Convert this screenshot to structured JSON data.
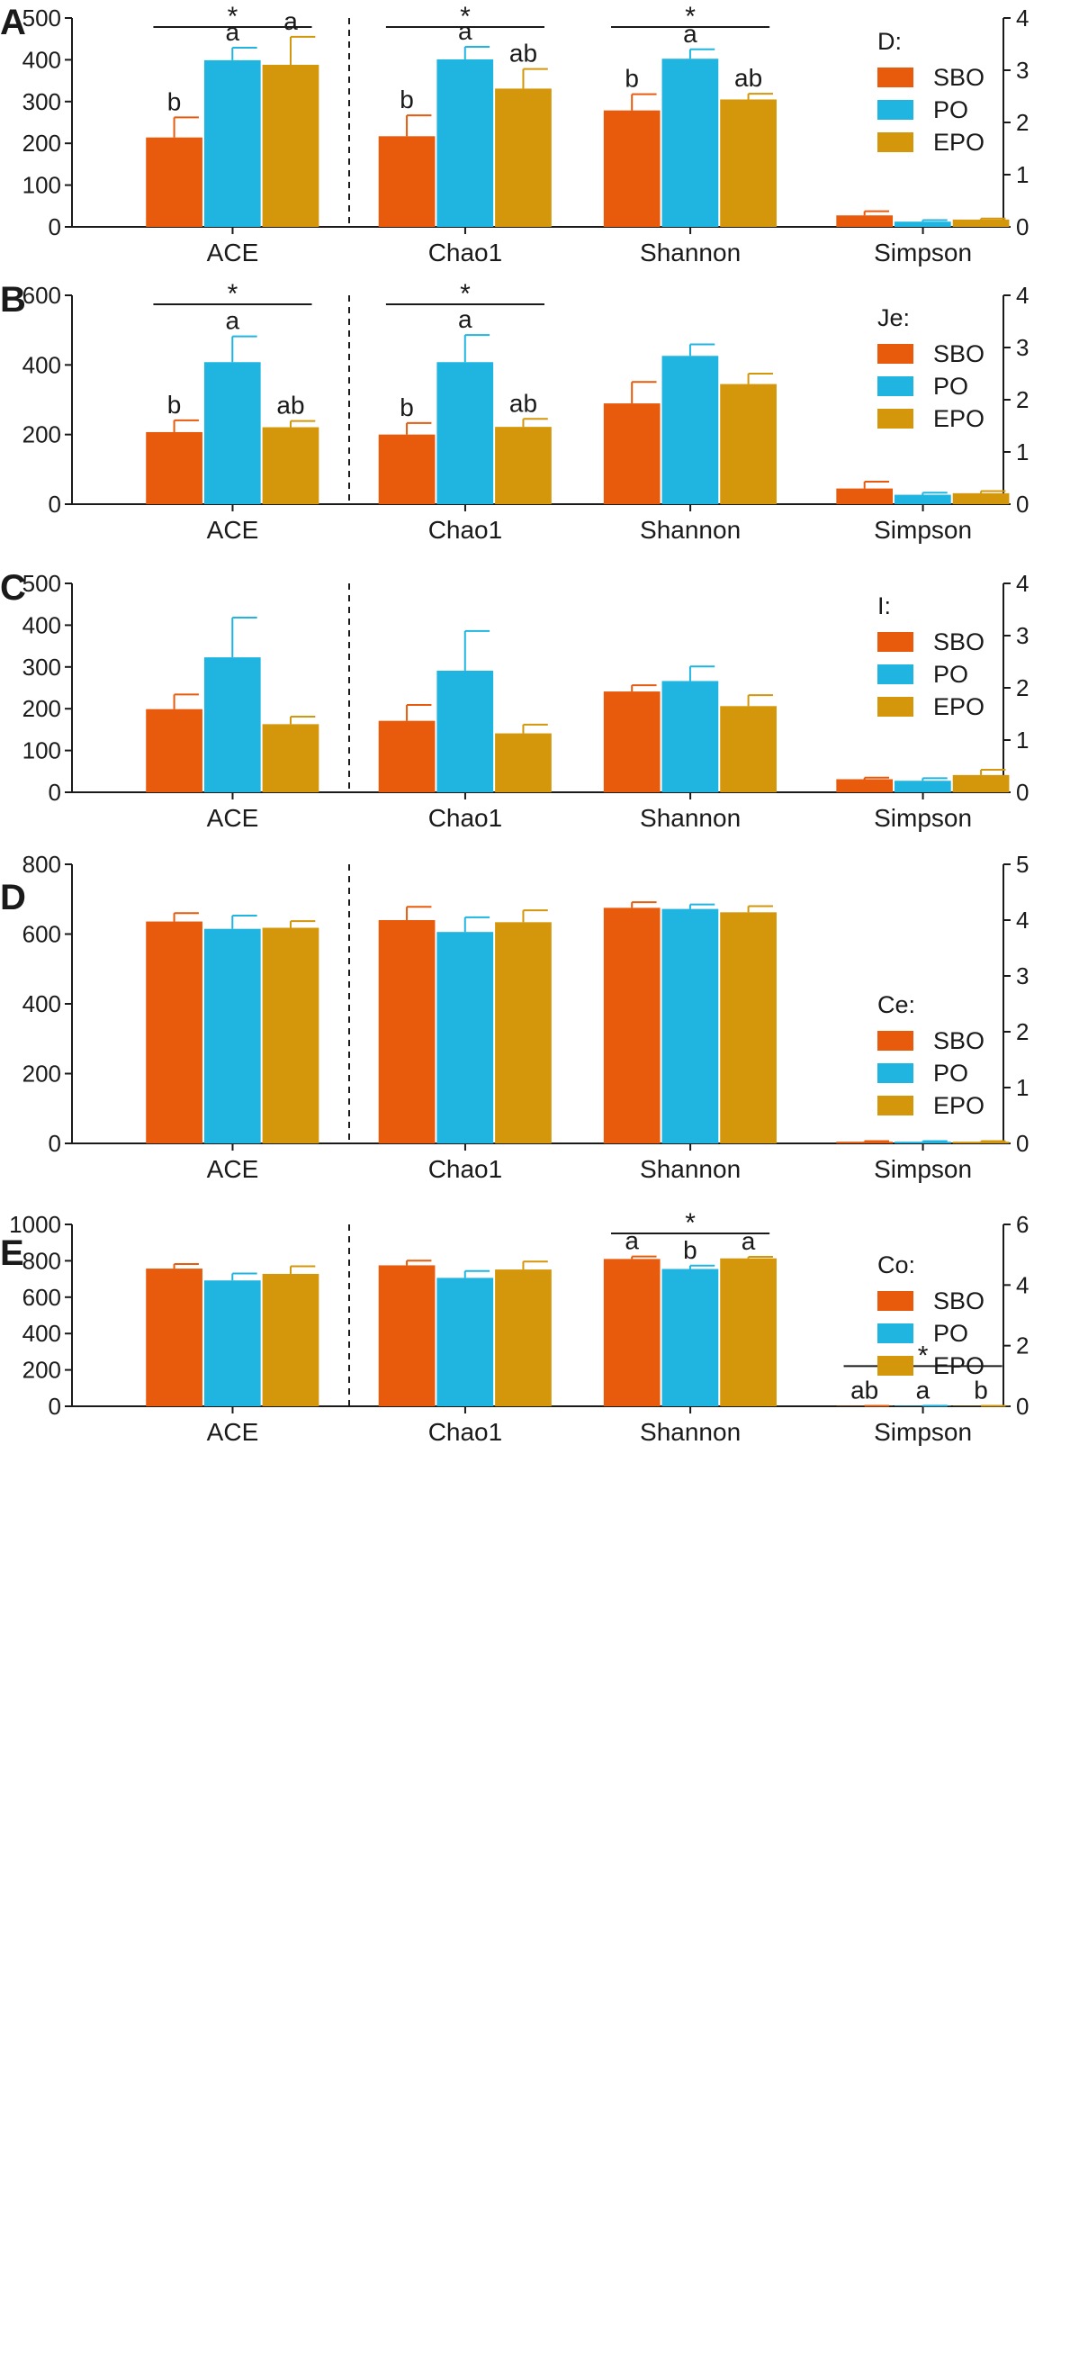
{
  "colors": {
    "SBO": "#E85A0C",
    "PO": "#1FB5E0",
    "EPO": "#D4960A",
    "axis": "#1a1a1a"
  },
  "chart_data": [
    {
      "type": "bar",
      "panel": "A",
      "legend_title": "D:",
      "categories": [
        "ACE",
        "Chao1",
        "Shannon",
        "Simpson"
      ],
      "left_axis": {
        "ylim": [
          0,
          500
        ],
        "ticks": [
          0,
          100,
          200,
          300,
          400,
          500
        ],
        "applies_to": [
          "ACE",
          "Chao1"
        ]
      },
      "right_axis": {
        "ylim": [
          0,
          4
        ],
        "ticks": [
          0,
          1,
          2,
          3,
          4
        ],
        "applies_to": [
          "Shannon",
          "Simpson"
        ]
      },
      "series": [
        {
          "name": "SBO",
          "values": [
            214,
            217,
            2.23,
            0.22
          ],
          "errors": [
            48,
            50,
            0.31,
            0.08
          ]
        },
        {
          "name": "PO",
          "values": [
            399,
            401,
            3.22,
            0.1
          ],
          "errors": [
            30,
            30,
            0.18,
            0.03
          ]
        },
        {
          "name": "EPO",
          "values": [
            388,
            331,
            2.44,
            0.14
          ],
          "errors": [
            67,
            47,
            0.11,
            0.02
          ]
        }
      ],
      "letters": [
        [
          "b",
          "a",
          "a"
        ],
        [
          "b",
          "a",
          "ab"
        ],
        [
          "b",
          "a",
          "ab"
        ],
        [
          "",
          "",
          ""
        ]
      ],
      "significance": [
        {
          "category": "ACE",
          "label": "*"
        },
        {
          "category": "Chao1",
          "label": "*"
        },
        {
          "category": "Shannon",
          "label": "*"
        }
      ]
    },
    {
      "type": "bar",
      "panel": "B",
      "legend_title": "Je:",
      "categories": [
        "ACE",
        "Chao1",
        "Shannon",
        "Simpson"
      ],
      "left_axis": {
        "ylim": [
          0,
          600
        ],
        "ticks": [
          0,
          200,
          400,
          600
        ],
        "applies_to": [
          "ACE",
          "Chao1"
        ]
      },
      "right_axis": {
        "ylim": [
          0,
          4
        ],
        "ticks": [
          0,
          1,
          2,
          3,
          4
        ],
        "applies_to": [
          "Shannon",
          "Simpson"
        ]
      },
      "series": [
        {
          "name": "SBO",
          "values": [
            207,
            200,
            1.93,
            0.3
          ],
          "errors": [
            34,
            33,
            0.41,
            0.13
          ]
        },
        {
          "name": "PO",
          "values": [
            408,
            408,
            2.84,
            0.18
          ],
          "errors": [
            74,
            78,
            0.22,
            0.04
          ]
        },
        {
          "name": "EPO",
          "values": [
            221,
            222,
            2.3,
            0.21
          ],
          "errors": [
            18,
            23,
            0.2,
            0.04
          ]
        }
      ],
      "letters": [
        [
          "b",
          "a",
          "ab"
        ],
        [
          "b",
          "a",
          "ab"
        ],
        [
          "",
          "",
          ""
        ],
        [
          "",
          "",
          ""
        ]
      ],
      "significance": [
        {
          "category": "ACE",
          "label": "*"
        },
        {
          "category": "Chao1",
          "label": "*"
        }
      ]
    },
    {
      "type": "bar",
      "panel": "C",
      "legend_title": "I:",
      "categories": [
        "ACE",
        "Chao1",
        "Shannon",
        "Simpson"
      ],
      "left_axis": {
        "ylim": [
          0,
          500
        ],
        "ticks": [
          0,
          100,
          200,
          300,
          400,
          500
        ],
        "applies_to": [
          "ACE",
          "Chao1"
        ]
      },
      "right_axis": {
        "ylim": [
          0,
          4
        ],
        "ticks": [
          0,
          1,
          2,
          3,
          4
        ],
        "applies_to": [
          "Shannon",
          "Simpson"
        ]
      },
      "series": [
        {
          "name": "SBO",
          "values": [
            199,
            171,
            1.93,
            0.25
          ],
          "errors": [
            35,
            38,
            0.12,
            0.03
          ]
        },
        {
          "name": "PO",
          "values": [
            323,
            291,
            2.13,
            0.22
          ],
          "errors": [
            95,
            95,
            0.28,
            0.05
          ]
        },
        {
          "name": "EPO",
          "values": [
            163,
            141,
            1.65,
            0.33
          ],
          "errors": [
            18,
            21,
            0.21,
            0.1
          ]
        }
      ],
      "letters": [
        [
          "",
          "",
          ""
        ],
        [
          "",
          "",
          ""
        ],
        [
          "",
          "",
          ""
        ],
        [
          "",
          "",
          ""
        ]
      ],
      "significance": []
    },
    {
      "type": "bar",
      "panel": "D",
      "legend_title": "Ce:",
      "categories": [
        "ACE",
        "Chao1",
        "Shannon",
        "Simpson"
      ],
      "left_axis": {
        "ylim": [
          0,
          800
        ],
        "ticks": [
          0,
          200,
          400,
          600,
          800
        ],
        "applies_to": [
          "ACE",
          "Chao1"
        ]
      },
      "right_axis": {
        "ylim": [
          0,
          5
        ],
        "ticks": [
          0,
          1,
          2,
          3,
          4,
          5
        ],
        "applies_to": [
          "Shannon",
          "Simpson"
        ]
      },
      "series": [
        {
          "name": "SBO",
          "values": [
            636,
            640,
            4.22,
            0.03
          ],
          "errors": [
            24,
            38,
            0.1,
            0.01
          ]
        },
        {
          "name": "PO",
          "values": [
            615,
            606,
            4.2,
            0.03
          ],
          "errors": [
            38,
            42,
            0.08,
            0.01
          ]
        },
        {
          "name": "EPO",
          "values": [
            618,
            634,
            4.14,
            0.03
          ],
          "errors": [
            19,
            34,
            0.11,
            0.01
          ]
        }
      ],
      "letters": [
        [
          "",
          "",
          ""
        ],
        [
          "",
          "",
          ""
        ],
        [
          "",
          "",
          ""
        ],
        [
          "",
          "",
          ""
        ]
      ],
      "significance": []
    },
    {
      "type": "bar",
      "panel": "E",
      "legend_title": "Co:",
      "categories": [
        "ACE",
        "Chao1",
        "Shannon",
        "Simpson"
      ],
      "left_axis": {
        "ylim": [
          0,
          1000
        ],
        "ticks": [
          0,
          200,
          400,
          600,
          800,
          1000
        ],
        "applies_to": [
          "ACE",
          "Chao1"
        ]
      },
      "right_axis": {
        "ylim": [
          0,
          6
        ],
        "ticks": [
          0,
          2,
          4,
          6
        ],
        "applies_to": [
          "Shannon",
          "Simpson"
        ]
      },
      "series": [
        {
          "name": "SBO",
          "values": [
            757,
            775,
            4.86,
            0.01
          ],
          "errors": [
            25,
            26,
            0.08,
            0.003
          ]
        },
        {
          "name": "PO",
          "values": [
            692,
            706,
            4.53,
            0.016
          ],
          "errors": [
            38,
            38,
            0.11,
            0.004
          ]
        },
        {
          "name": "EPO",
          "values": [
            728,
            752,
            4.88,
            0.01
          ],
          "errors": [
            42,
            44,
            0.05,
            0.003
          ]
        }
      ],
      "letters": [
        [
          "",
          "",
          ""
        ],
        [
          "",
          "",
          ""
        ],
        [
          "a",
          "b",
          "a"
        ],
        [
          "ab",
          "a",
          "b"
        ]
      ],
      "significance": [
        {
          "category": "Shannon",
          "label": "*"
        },
        {
          "category": "Simpson",
          "label": "*"
        }
      ]
    }
  ]
}
